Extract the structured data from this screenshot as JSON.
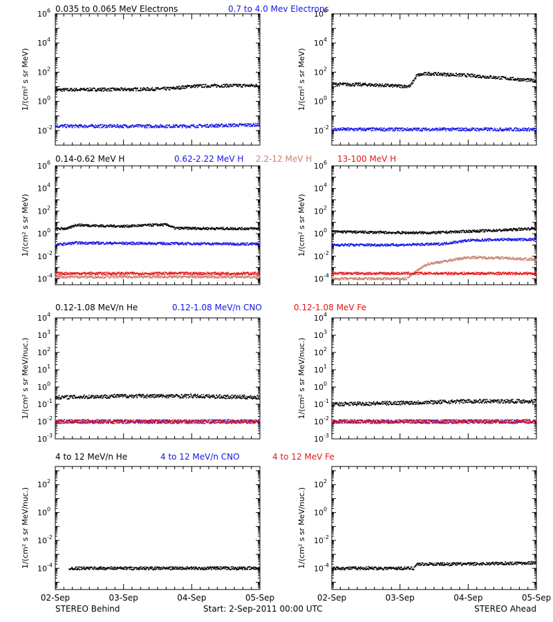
{
  "colors": {
    "black": "#000000",
    "blue": "#1414e6",
    "tan": "#c8826e",
    "red": "#e61414"
  },
  "footer": {
    "left_label": "STEREO Behind",
    "center_label": "Start:  2-Sep-2011 00:00 UTC",
    "right_label": "STEREO Ahead"
  },
  "chart_data": [
    {
      "type": "scatter",
      "panel_row": "electrons",
      "spacecraft": "STEREO Behind",
      "legend": [
        {
          "label": "0.035 to 0.065 MeV Electrons",
          "color": "black"
        },
        {
          "label": "0.7 to 4.0 Mev Electrons",
          "color": "blue"
        }
      ],
      "ylabel": "1/(cm² s sr MeV)",
      "yscale": "log",
      "ylim": [
        0.001,
        1000000
      ],
      "yticks": [
        {
          "v": 0.01,
          "base": "10",
          "exp": "-2"
        },
        {
          "v": 1,
          "base": "10",
          "exp": "0"
        },
        {
          "v": 100,
          "base": "10",
          "exp": "2"
        },
        {
          "v": 10000,
          "base": "10",
          "exp": "4"
        },
        {
          "v": 1000000,
          "base": "10",
          "exp": "6"
        }
      ],
      "xlim": [
        0,
        3
      ],
      "xticks": [
        "02-Sep",
        "03-Sep",
        "04-Sep",
        "05-Sep"
      ],
      "series": [
        {
          "color": "black",
          "points": [
            [
              0,
              6
            ],
            [
              0.5,
              6.5
            ],
            [
              1.0,
              6.5
            ],
            [
              1.5,
              7
            ],
            [
              1.7,
              7.5
            ],
            [
              2.0,
              11
            ],
            [
              2.5,
              12
            ],
            [
              3.0,
              12
            ]
          ]
        },
        {
          "color": "blue",
          "points": [
            [
              0,
              0.02
            ],
            [
              1.0,
              0.02
            ],
            [
              2.0,
              0.02
            ],
            [
              3.0,
              0.025
            ]
          ]
        }
      ]
    },
    {
      "type": "scatter",
      "panel_row": "electrons",
      "spacecraft": "STEREO Ahead",
      "legend": [],
      "ylabel": "1/(cm² s sr MeV)",
      "yscale": "log",
      "ylim": [
        0.001,
        1000000
      ],
      "yticks": [
        {
          "v": 0.01,
          "base": "10",
          "exp": "-2"
        },
        {
          "v": 1,
          "base": "10",
          "exp": "0"
        },
        {
          "v": 100,
          "base": "10",
          "exp": "2"
        },
        {
          "v": 10000,
          "base": "10",
          "exp": "4"
        },
        {
          "v": 1000000,
          "base": "10",
          "exp": "6"
        }
      ],
      "xlim": [
        0,
        3
      ],
      "xticks": [
        "02-Sep",
        "03-Sep",
        "04-Sep",
        "05-Sep"
      ],
      "series": [
        {
          "color": "black",
          "points": [
            [
              0,
              15
            ],
            [
              0.5,
              14
            ],
            [
              1.0,
              11
            ],
            [
              1.15,
              11
            ],
            [
              1.25,
              60
            ],
            [
              1.4,
              80
            ],
            [
              2.0,
              60
            ],
            [
              2.5,
              40
            ],
            [
              3.0,
              25
            ]
          ]
        },
        {
          "color": "blue",
          "points": [
            [
              0,
              0.012
            ],
            [
              3.0,
              0.012
            ]
          ]
        }
      ]
    },
    {
      "type": "scatter",
      "panel_row": "protons",
      "spacecraft": "STEREO Behind",
      "legend": [
        {
          "label": "0.14-0.62 MeV H",
          "color": "black"
        },
        {
          "label": "0.62-2.22 MeV H",
          "color": "blue"
        },
        {
          "label": "2.2-12 MeV H",
          "color": "tan"
        },
        {
          "label": "13-100 MeV H",
          "color": "red"
        }
      ],
      "ylabel": "1/(cm² s sr MeV)",
      "yscale": "log",
      "ylim": [
        3e-05,
        1000000
      ],
      "yticks": [
        {
          "v": 0.0001,
          "base": "10",
          "exp": "-4"
        },
        {
          "v": 0.01,
          "base": "10",
          "exp": "-2"
        },
        {
          "v": 1,
          "base": "10",
          "exp": "0"
        },
        {
          "v": 100,
          "base": "10",
          "exp": "2"
        },
        {
          "v": 10000,
          "base": "10",
          "exp": "4"
        },
        {
          "v": 1000000,
          "base": "10",
          "exp": "6"
        }
      ],
      "xlim": [
        0,
        3
      ],
      "xticks": [
        "02-Sep",
        "03-Sep",
        "04-Sep",
        "05-Sep"
      ],
      "series": [
        {
          "color": "black",
          "points": [
            [
              0,
              2.5
            ],
            [
              0.2,
              3
            ],
            [
              0.3,
              6
            ],
            [
              0.6,
              5
            ],
            [
              1.0,
              4.5
            ],
            [
              1.5,
              6
            ],
            [
              1.65,
              6
            ],
            [
              1.75,
              3
            ],
            [
              2.5,
              2.8
            ],
            [
              3.0,
              2.8
            ]
          ]
        },
        {
          "color": "blue",
          "points": [
            [
              0,
              0.1
            ],
            [
              0.3,
              0.15
            ],
            [
              1.0,
              0.14
            ],
            [
              2.0,
              0.13
            ],
            [
              3.0,
              0.12
            ]
          ]
        },
        {
          "color": "tan",
          "points": [
            [
              0,
              0.00015
            ],
            [
              3.0,
              0.00015
            ]
          ]
        },
        {
          "color": "red",
          "points": [
            [
              0,
              0.0003
            ],
            [
              3.0,
              0.0003
            ]
          ]
        }
      ]
    },
    {
      "type": "scatter",
      "panel_row": "protons",
      "spacecraft": "STEREO Ahead",
      "legend": [],
      "ylabel": "1/(cm² s sr MeV)",
      "yscale": "log",
      "ylim": [
        3e-05,
        1000000
      ],
      "yticks": [
        {
          "v": 0.0001,
          "base": "10",
          "exp": "-4"
        },
        {
          "v": 0.01,
          "base": "10",
          "exp": "-2"
        },
        {
          "v": 1,
          "base": "10",
          "exp": "0"
        },
        {
          "v": 100,
          "base": "10",
          "exp": "2"
        },
        {
          "v": 10000,
          "base": "10",
          "exp": "4"
        },
        {
          "v": 1000000,
          "base": "10",
          "exp": "6"
        }
      ],
      "xlim": [
        0,
        3
      ],
      "xticks": [
        "02-Sep",
        "03-Sep",
        "04-Sep",
        "05-Sep"
      ],
      "series": [
        {
          "color": "black",
          "points": [
            [
              0,
              1.5
            ],
            [
              1.0,
              1.2
            ],
            [
              1.5,
              1.2
            ],
            [
              2.0,
              1.6
            ],
            [
              2.5,
              2
            ],
            [
              3.0,
              3
            ]
          ]
        },
        {
          "color": "blue",
          "points": [
            [
              0,
              0.1
            ],
            [
              1.0,
              0.1
            ],
            [
              1.6,
              0.12
            ],
            [
              2.0,
              0.25
            ],
            [
              2.5,
              0.3
            ],
            [
              3.0,
              0.3
            ]
          ]
        },
        {
          "color": "tan",
          "points": [
            [
              0,
              0.0001
            ],
            [
              1.1,
              0.0001
            ],
            [
              1.25,
              0.0005
            ],
            [
              1.4,
              0.002
            ],
            [
              2.0,
              0.008
            ],
            [
              2.5,
              0.007
            ],
            [
              3.0,
              0.005
            ]
          ]
        },
        {
          "color": "red",
          "points": [
            [
              0,
              0.0003
            ],
            [
              3.0,
              0.0003
            ]
          ]
        }
      ]
    },
    {
      "type": "scatter",
      "panel_row": "low-energy ions",
      "spacecraft": "STEREO Behind",
      "legend": [
        {
          "label": "0.12-1.08 MeV/n He",
          "color": "black"
        },
        {
          "label": "0.12-1.08 MeV/n CNO",
          "color": "blue"
        },
        {
          "label": "0.12-1.08 MeV Fe",
          "color": "red"
        }
      ],
      "ylabel": "1/(cm² s sr MeV/nuc.)",
      "yscale": "log",
      "ylim": [
        0.001,
        10000
      ],
      "yticks": [
        {
          "v": 0.001,
          "base": "10",
          "exp": "-3"
        },
        {
          "v": 0.01,
          "base": "10",
          "exp": "-2"
        },
        {
          "v": 0.1,
          "base": "10",
          "exp": "-1"
        },
        {
          "v": 1,
          "base": "10",
          "exp": "0"
        },
        {
          "v": 10,
          "base": "10",
          "exp": "1"
        },
        {
          "v": 100,
          "base": "10",
          "exp": "2"
        },
        {
          "v": 1000,
          "base": "10",
          "exp": "3"
        },
        {
          "v": 10000,
          "base": "10",
          "exp": "4"
        }
      ],
      "xlim": [
        0,
        3
      ],
      "xticks": [
        "02-Sep",
        "03-Sep",
        "04-Sep",
        "05-Sep"
      ],
      "series": [
        {
          "color": "black",
          "points": [
            [
              0,
              0.25
            ],
            [
              1.0,
              0.3
            ],
            [
              2.0,
              0.3
            ],
            [
              3.0,
              0.25
            ]
          ]
        },
        {
          "color": "blue",
          "points": [
            [
              0,
              0.01
            ],
            [
              3.0,
              0.01
            ]
          ]
        },
        {
          "color": "red",
          "points": [
            [
              0,
              0.01
            ],
            [
              3.0,
              0.01
            ]
          ]
        }
      ]
    },
    {
      "type": "scatter",
      "panel_row": "low-energy ions",
      "spacecraft": "STEREO Ahead",
      "legend": [],
      "ylabel": "1/(cm² s sr MeV/nuc.)",
      "yscale": "log",
      "ylim": [
        0.001,
        10000
      ],
      "yticks": [
        {
          "v": 0.001,
          "base": "10",
          "exp": "-3"
        },
        {
          "v": 0.01,
          "base": "10",
          "exp": "-2"
        },
        {
          "v": 0.1,
          "base": "10",
          "exp": "-1"
        },
        {
          "v": 1,
          "base": "10",
          "exp": "0"
        },
        {
          "v": 10,
          "base": "10",
          "exp": "1"
        },
        {
          "v": 100,
          "base": "10",
          "exp": "2"
        },
        {
          "v": 1000,
          "base": "10",
          "exp": "3"
        },
        {
          "v": 10000,
          "base": "10",
          "exp": "4"
        }
      ],
      "xlim": [
        0,
        3
      ],
      "xticks": [
        "02-Sep",
        "03-Sep",
        "04-Sep",
        "05-Sep"
      ],
      "series": [
        {
          "color": "black",
          "points": [
            [
              0,
              0.1
            ],
            [
              1.0,
              0.12
            ],
            [
              2.0,
              0.15
            ],
            [
              3.0,
              0.15
            ]
          ]
        },
        {
          "color": "blue",
          "points": [
            [
              0,
              0.01
            ],
            [
              3.0,
              0.01
            ]
          ]
        },
        {
          "color": "red",
          "points": [
            [
              0,
              0.01
            ],
            [
              3.0,
              0.01
            ]
          ]
        }
      ]
    },
    {
      "type": "scatter",
      "panel_row": "high-energy ions",
      "spacecraft": "STEREO Behind",
      "legend": [
        {
          "label": "4 to 12 MeV/n He",
          "color": "black"
        },
        {
          "label": "4 to 12 MeV/n CNO",
          "color": "blue"
        },
        {
          "label": "4 to 12 MeV Fe",
          "color": "red"
        }
      ],
      "ylabel": "1/(cm² s sr MeV/nuc.)",
      "yscale": "log",
      "ylim": [
        3e-06,
        2000
      ],
      "yticks": [
        {
          "v": 0.0001,
          "base": "10",
          "exp": "-4"
        },
        {
          "v": 0.01,
          "base": "10",
          "exp": "-2"
        },
        {
          "v": 1,
          "base": "10",
          "exp": "0"
        },
        {
          "v": 100,
          "base": "10",
          "exp": "2"
        }
      ],
      "xlim": [
        0,
        3
      ],
      "xticks": [
        "02-Sep",
        "03-Sep",
        "04-Sep",
        "05-Sep"
      ],
      "series": [
        {
          "color": "black",
          "points": [
            [
              0.2,
              0.0001
            ],
            [
              3.0,
              0.0001
            ]
          ]
        }
      ]
    },
    {
      "type": "scatter",
      "panel_row": "high-energy ions",
      "spacecraft": "STEREO Ahead",
      "legend": [],
      "ylabel": "1/(cm² s sr MeV/nuc.)",
      "yscale": "log",
      "ylim": [
        3e-06,
        2000
      ],
      "yticks": [
        {
          "v": 0.0001,
          "base": "10",
          "exp": "-4"
        },
        {
          "v": 0.01,
          "base": "10",
          "exp": "-2"
        },
        {
          "v": 1,
          "base": "10",
          "exp": "0"
        },
        {
          "v": 100,
          "base": "10",
          "exp": "2"
        }
      ],
      "xlim": [
        0,
        3
      ],
      "xticks": [
        "02-Sep",
        "03-Sep",
        "04-Sep",
        "05-Sep"
      ],
      "series": [
        {
          "color": "black",
          "points": [
            [
              0,
              0.0001
            ],
            [
              1.2,
              0.0001
            ],
            [
              1.25,
              0.0002
            ],
            [
              2.0,
              0.0002
            ],
            [
              3.0,
              0.00025
            ]
          ]
        }
      ]
    }
  ]
}
